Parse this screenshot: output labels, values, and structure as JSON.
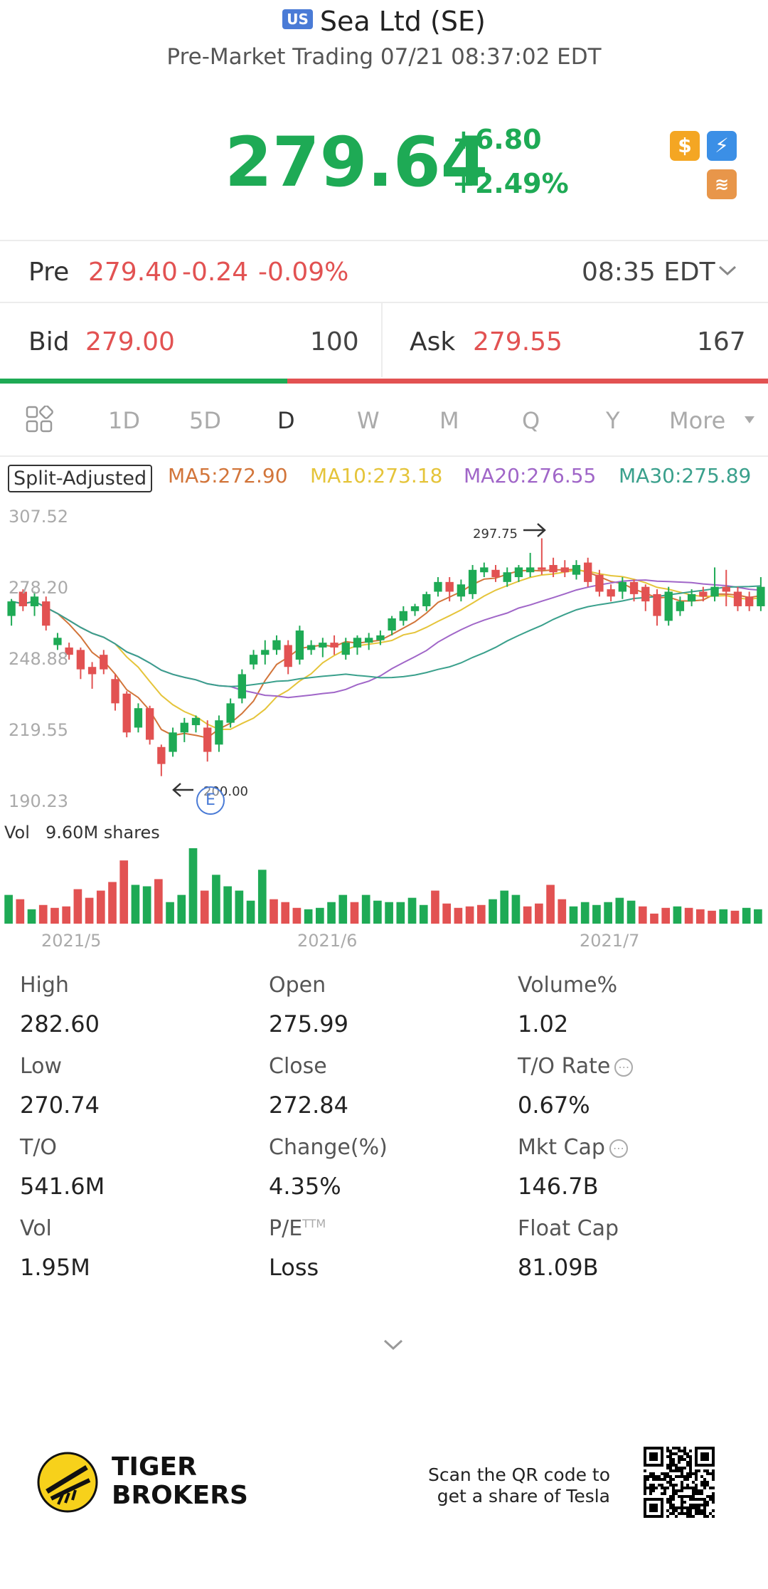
{
  "header": {
    "badge": "US",
    "title": "Sea Ltd (SE)",
    "subtitle": "Pre-Market Trading 07/21 08:37:02 EDT"
  },
  "quote": {
    "price": "279.64",
    "change": "+6.80",
    "change_pct": "+2.49%",
    "icons": [
      "dollar-icon",
      "lightning-icon",
      "stack-icon"
    ]
  },
  "pre": {
    "label": "Pre",
    "price": "279.40",
    "change": "-0.24",
    "change_pct": "-0.09%",
    "time": "08:35 EDT"
  },
  "bidask": {
    "bid_label": "Bid",
    "bid_price": "279.00",
    "bid_size": "100",
    "ask_label": "Ask",
    "ask_price": "279.55",
    "ask_size": "167",
    "bid_ratio": 0.374
  },
  "tabs": [
    "1D",
    "5D",
    "D",
    "W",
    "M",
    "Q",
    "Y",
    "More"
  ],
  "active_tab": "D",
  "indicators": {
    "adjust": "Split-Adjusted",
    "ma5": "MA5:272.90",
    "ma10": "MA10:273.18",
    "ma20": "MA20:276.55",
    "ma30": "MA30:275.89"
  },
  "colors": {
    "up": "#1eaa55",
    "down": "#e25252",
    "ma5": "#d2753a",
    "ma10": "#e5c43a",
    "ma20": "#a066c8",
    "ma30": "#3aa08c"
  },
  "chart_data": {
    "type": "candlestick",
    "y_ticks": [
      "307.52",
      "278.20",
      "248.88",
      "219.55",
      "190.23"
    ],
    "ylim": [
      190.23,
      307.52
    ],
    "high_marker": "297.75",
    "low_marker": "200.00",
    "earnings_marker": "E",
    "x_labels": [
      "2021/5",
      "2021/6",
      "2021/7"
    ],
    "candles": [
      [
        266,
        272,
        262,
        273
      ],
      [
        276,
        270,
        268,
        277
      ],
      [
        270,
        274,
        266,
        276
      ],
      [
        272,
        262,
        260,
        274
      ],
      [
        254,
        257,
        252,
        259
      ],
      [
        253,
        250,
        248,
        255
      ],
      [
        252,
        244,
        240,
        253
      ],
      [
        245,
        242,
        236,
        247
      ],
      [
        250,
        244,
        242,
        252
      ],
      [
        240,
        230,
        227,
        242
      ],
      [
        234,
        218,
        216,
        235
      ],
      [
        220,
        228,
        218,
        230
      ],
      [
        228,
        215,
        213,
        229
      ],
      [
        212,
        205,
        200,
        213
      ],
      [
        210,
        218,
        208,
        220
      ],
      [
        218,
        222,
        214,
        224
      ],
      [
        221,
        224,
        218,
        225
      ],
      [
        220,
        210,
        206,
        223
      ],
      [
        213,
        223,
        210,
        225
      ],
      [
        222,
        230,
        220,
        232
      ],
      [
        232,
        242,
        230,
        244
      ],
      [
        246,
        250,
        244,
        252
      ],
      [
        250,
        252,
        246,
        256
      ],
      [
        252,
        256,
        250,
        258
      ],
      [
        254,
        245,
        242,
        256
      ],
      [
        248,
        260,
        246,
        262
      ],
      [
        252,
        254,
        250,
        256
      ],
      [
        253,
        255,
        249,
        257
      ],
      [
        255,
        253,
        250,
        258
      ],
      [
        250,
        255,
        248,
        257
      ],
      [
        253,
        257,
        250,
        258
      ],
      [
        255,
        257,
        252,
        259
      ],
      [
        256,
        258,
        254,
        260
      ],
      [
        260,
        265,
        258,
        266
      ],
      [
        264,
        268,
        262,
        270
      ],
      [
        268,
        270,
        266,
        271
      ],
      [
        270,
        275,
        268,
        276
      ],
      [
        276,
        280,
        274,
        282
      ],
      [
        280,
        276,
        272,
        282
      ],
      [
        274,
        279,
        272,
        281
      ],
      [
        275,
        285,
        273,
        287
      ],
      [
        284,
        286,
        282,
        288
      ],
      [
        285,
        282,
        280,
        287
      ],
      [
        280,
        284,
        278,
        286
      ],
      [
        282,
        286,
        280,
        287
      ],
      [
        284,
        286,
        282,
        292
      ],
      [
        286,
        285,
        283,
        298
      ],
      [
        287,
        284,
        282,
        290
      ],
      [
        286,
        284,
        282,
        289
      ],
      [
        283,
        287,
        281,
        289
      ],
      [
        288,
        280,
        278,
        290
      ],
      [
        283,
        276,
        274,
        285
      ],
      [
        277,
        274,
        272,
        279
      ],
      [
        276,
        280,
        273,
        282
      ],
      [
        280,
        275,
        272,
        281
      ],
      [
        278,
        272,
        268,
        279
      ],
      [
        275,
        266,
        262,
        277
      ],
      [
        264,
        276,
        262,
        278
      ],
      [
        268,
        272,
        266,
        274
      ],
      [
        272,
        275,
        270,
        277
      ],
      [
        276,
        274,
        272,
        278
      ],
      [
        274,
        278,
        272,
        286
      ],
      [
        278,
        276,
        270,
        285
      ],
      [
        276,
        270,
        268,
        278
      ],
      [
        274,
        270,
        268,
        276
      ],
      [
        270,
        278,
        268,
        282
      ]
    ],
    "volume": [
      [
        40,
        "g"
      ],
      [
        34,
        "r"
      ],
      [
        20,
        "g"
      ],
      [
        26,
        "r"
      ],
      [
        22,
        "r"
      ],
      [
        24,
        "r"
      ],
      [
        48,
        "r"
      ],
      [
        36,
        "r"
      ],
      [
        46,
        "r"
      ],
      [
        58,
        "r"
      ],
      [
        88,
        "r"
      ],
      [
        54,
        "g"
      ],
      [
        52,
        "g"
      ],
      [
        62,
        "r"
      ],
      [
        30,
        "g"
      ],
      [
        40,
        "g"
      ],
      [
        105,
        "g"
      ],
      [
        46,
        "r"
      ],
      [
        68,
        "g"
      ],
      [
        52,
        "g"
      ],
      [
        46,
        "g"
      ],
      [
        32,
        "g"
      ],
      [
        75,
        "g"
      ],
      [
        34,
        "r"
      ],
      [
        30,
        "r"
      ],
      [
        22,
        "r"
      ],
      [
        20,
        "g"
      ],
      [
        22,
        "g"
      ],
      [
        30,
        "g"
      ],
      [
        40,
        "g"
      ],
      [
        30,
        "r"
      ],
      [
        40,
        "g"
      ],
      [
        32,
        "g"
      ],
      [
        30,
        "g"
      ],
      [
        30,
        "g"
      ],
      [
        36,
        "g"
      ],
      [
        26,
        "g"
      ],
      [
        46,
        "r"
      ],
      [
        28,
        "r"
      ],
      [
        22,
        "r"
      ],
      [
        24,
        "r"
      ],
      [
        26,
        "r"
      ],
      [
        34,
        "g"
      ],
      [
        46,
        "g"
      ],
      [
        40,
        "g"
      ],
      [
        24,
        "r"
      ],
      [
        28,
        "r"
      ],
      [
        54,
        "r"
      ],
      [
        34,
        "r"
      ],
      [
        24,
        "g"
      ],
      [
        30,
        "g"
      ],
      [
        26,
        "g"
      ],
      [
        30,
        "g"
      ],
      [
        36,
        "g"
      ],
      [
        32,
        "g"
      ],
      [
        24,
        "r"
      ],
      [
        14,
        "r"
      ],
      [
        22,
        "r"
      ],
      [
        24,
        "g"
      ],
      [
        22,
        "r"
      ],
      [
        20,
        "r"
      ],
      [
        18,
        "r"
      ],
      [
        20,
        "g"
      ],
      [
        18,
        "r"
      ],
      [
        22,
        "g"
      ],
      [
        20,
        "g"
      ]
    ]
  },
  "volume_label": "Vol",
  "volume_value": "9.60M shares",
  "stats": [
    {
      "label": "High",
      "value": "282.60"
    },
    {
      "label": "Open",
      "value": "275.99"
    },
    {
      "label": "Volume%",
      "value": "1.02"
    },
    {
      "label": "Low",
      "value": "270.74"
    },
    {
      "label": "Close",
      "value": "272.84"
    },
    {
      "label": "T/O Rate",
      "value": "0.67%"
    },
    {
      "label": "T/O",
      "value": "541.6M"
    },
    {
      "label": "Change(%)",
      "value": "4.35%"
    },
    {
      "label": "Mkt Cap",
      "value": "146.7B"
    },
    {
      "label": "Vol",
      "value": "1.95M"
    },
    {
      "label": "P/E",
      "value": "Loss"
    },
    {
      "label": "Float Cap",
      "value": "81.09B"
    }
  ],
  "pe_superscript": "TTM",
  "footer": {
    "brand_line1": "TIGER",
    "brand_line2": "BROKERS",
    "qr_line1": "Scan the QR code to",
    "qr_line2": "get a share of Tesla"
  }
}
